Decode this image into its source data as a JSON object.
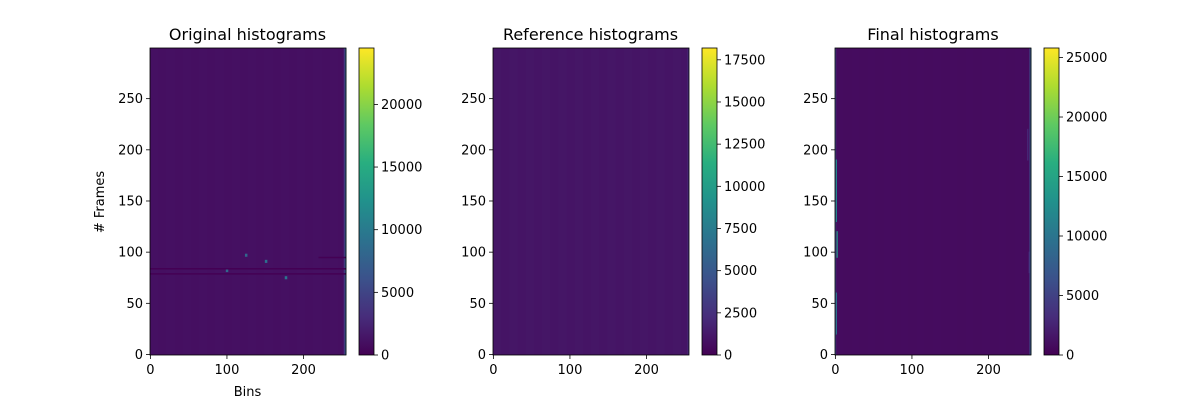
{
  "chart_data": [
    {
      "type": "heatmap",
      "title": "Original histograms",
      "xlabel": "Bins",
      "ylabel": "# Frames",
      "xlim": [
        0,
        255
      ],
      "ylim": [
        0,
        299
      ],
      "xticks": [
        "0",
        "100",
        "200"
      ],
      "yticks": [
        "0",
        "50",
        "100",
        "150",
        "200",
        "250"
      ],
      "background_value": 1000,
      "colorbar": {
        "min": 0,
        "max": 24500,
        "ticks": [
          "0",
          "5000",
          "10000",
          "15000",
          "20000"
        ]
      },
      "features": [
        {
          "kind": "column",
          "bin": 254,
          "from_frame": 0,
          "to_frame": 299,
          "value": 9000
        },
        {
          "kind": "column",
          "bin": 253,
          "from_frame": 0,
          "to_frame": 299,
          "value": 3500
        },
        {
          "kind": "column",
          "bin": 255,
          "from_frame": 0,
          "to_frame": 299,
          "value": 6000
        },
        {
          "kind": "spot",
          "bin": 124,
          "frame": 97,
          "value": 8000
        },
        {
          "kind": "spot",
          "bin": 150,
          "frame": 91,
          "value": 9000
        },
        {
          "kind": "spot",
          "bin": 99,
          "frame": 82,
          "value": 8000
        },
        {
          "kind": "spot",
          "bin": 176,
          "frame": 75,
          "value": 9500
        },
        {
          "kind": "row",
          "from_bin": 0,
          "to_bin": 255,
          "frame": 84,
          "value": 0
        },
        {
          "kind": "row",
          "from_bin": 0,
          "to_bin": 255,
          "frame": 79,
          "value": 0
        },
        {
          "kind": "row",
          "from_bin": 220,
          "to_bin": 255,
          "frame": 95,
          "value": 0
        }
      ]
    },
    {
      "type": "heatmap",
      "title": "Reference histograms",
      "xlabel": "",
      "ylabel": "",
      "xlim": [
        0,
        255
      ],
      "ylim": [
        0,
        299
      ],
      "xticks": [
        "0",
        "100",
        "200"
      ],
      "yticks": [
        "0",
        "50",
        "100",
        "150",
        "200",
        "250"
      ],
      "background_value": 1000,
      "colorbar": {
        "min": 0,
        "max": 18200,
        "ticks": [
          "0",
          "2500",
          "5000",
          "7500",
          "10000",
          "12500",
          "15000",
          "17500"
        ]
      },
      "features": [
        {
          "kind": "column",
          "bin": 254,
          "from_frame": 0,
          "to_frame": 299,
          "value": 2200
        }
      ]
    },
    {
      "type": "heatmap",
      "title": "Final histograms",
      "xlabel": "",
      "ylabel": "",
      "xlim": [
        0,
        255
      ],
      "ylim": [
        0,
        299
      ],
      "xticks": [
        "0",
        "100",
        "200"
      ],
      "yticks": [
        "0",
        "50",
        "100",
        "150",
        "200",
        "250"
      ],
      "background_value": 800,
      "colorbar": {
        "min": 0,
        "max": 25800,
        "ticks": [
          "0",
          "5000",
          "10000",
          "15000",
          "20000",
          "25000"
        ]
      },
      "features": [
        {
          "kind": "column",
          "bin": 0,
          "from_frame": 0,
          "to_frame": 299,
          "value": 5000
        },
        {
          "kind": "column",
          "bin": 1,
          "from_frame": 20,
          "to_frame": 60,
          "value": 10000
        },
        {
          "kind": "column",
          "bin": 1,
          "from_frame": 130,
          "to_frame": 190,
          "value": 12000
        },
        {
          "kind": "column",
          "bin": 2,
          "from_frame": 95,
          "to_frame": 120,
          "value": 14000
        },
        {
          "kind": "column",
          "bin": 255,
          "from_frame": 0,
          "to_frame": 299,
          "value": 12000
        },
        {
          "kind": "column",
          "bin": 254,
          "from_frame": 0,
          "to_frame": 299,
          "value": 6000
        },
        {
          "kind": "column",
          "bin": 253,
          "from_frame": 80,
          "to_frame": 100,
          "value": 4000
        },
        {
          "kind": "column",
          "bin": 251,
          "from_frame": 190,
          "to_frame": 220,
          "value": 3000
        }
      ]
    }
  ]
}
